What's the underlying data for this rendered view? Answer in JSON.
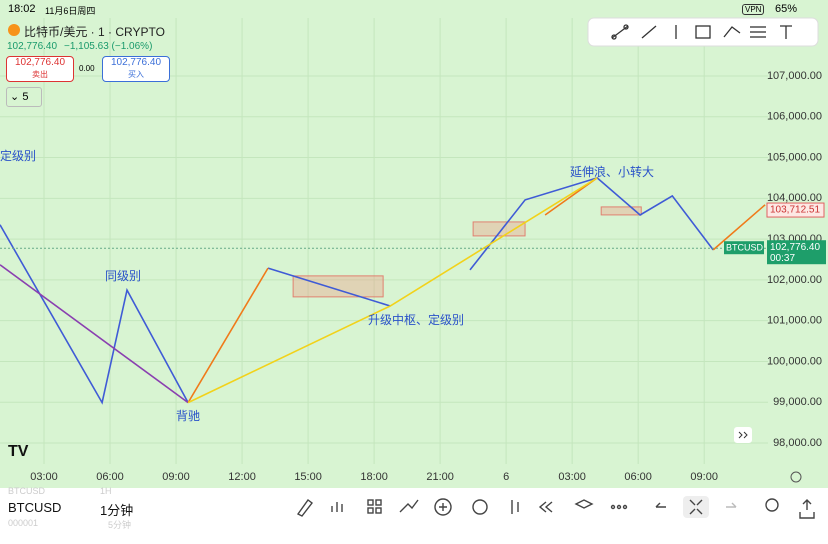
{
  "status_bar": {
    "time": "18:02",
    "date": "11月6日周四",
    "vpn": "VPN",
    "battery": "65%"
  },
  "header": {
    "symbol": "比特币/美元 · 1 · CRYPTO",
    "price": "102,776.40",
    "change": "−1,105.63 (−1.06%)",
    "sell_price": "102,776.40",
    "sell_label": "卖出",
    "spread": "0.00",
    "buy_price": "102,776.40",
    "buy_label": "买入",
    "indicator_count": "5"
  },
  "chart_data": {
    "type": "line",
    "xlim": [
      1,
      35.9
    ],
    "xticks": [
      {
        "value": 3,
        "label": "03:00"
      },
      {
        "value": 6,
        "label": "06:00"
      },
      {
        "value": 9,
        "label": "09:00"
      },
      {
        "value": 12,
        "label": "12:00"
      },
      {
        "value": 15,
        "label": "15:00"
      },
      {
        "value": 18,
        "label": "18:00"
      },
      {
        "value": 21,
        "label": "21:00"
      },
      {
        "value": 24,
        "label": "6"
      },
      {
        "value": 27,
        "label": "03:00"
      },
      {
        "value": 30,
        "label": "06:00"
      },
      {
        "value": 33,
        "label": "09:00"
      }
    ],
    "ylim": [
      97485,
      108250
    ],
    "yticks": [
      {
        "value": 98000,
        "label": "98,000.00"
      },
      {
        "value": 99000,
        "label": "99,000.00"
      },
      {
        "value": 100000,
        "label": "100,000.00"
      },
      {
        "value": 101000,
        "label": "101,000.00"
      },
      {
        "value": 102000,
        "label": "102,000.00"
      },
      {
        "value": 103000,
        "label": "103,000.00"
      },
      {
        "value": 104000,
        "label": "104,000.00"
      },
      {
        "value": 105000,
        "label": "105,000.00"
      },
      {
        "value": 106000,
        "label": "106,000.00"
      },
      {
        "value": 107000,
        "label": "107,000.00"
      }
    ],
    "grid": true,
    "series": [
      {
        "color": "#3f5bd6",
        "x": [
          1.0,
          5.64,
          6.77,
          9.55,
          null,
          13.18,
          18.73,
          null,
          22.36,
          24.86,
          28.14,
          30.09,
          31.55,
          33.41
        ],
        "values": [
          103350,
          98990,
          101750,
          98990,
          null,
          102290,
          101360,
          null,
          102245,
          103960,
          104500,
          103590,
          104060,
          102735
        ]
      },
      {
        "color": "#8a3fb0",
        "x": [
          1.0,
          9.55
        ],
        "values": [
          102370,
          98990
        ]
      },
      {
        "color": "#f07a1a",
        "x": [
          9.55,
          13.18,
          null,
          25.77,
          28.14,
          null,
          33.41,
          35.77
        ],
        "values": [
          98990,
          102290,
          null,
          103590,
          104500,
          null,
          102735,
          103840
        ]
      },
      {
        "color": "#f2d21a",
        "x": [
          9.55,
          18.73,
          28.14
        ],
        "values": [
          98990,
          101360,
          104500
        ]
      }
    ],
    "boxes": [
      {
        "x": [
          14.32,
          18.41
        ],
        "values": [
          101583,
          102098
        ]
      },
      {
        "x": [
          22.5,
          24.86
        ],
        "values": [
          103078,
          103421
        ]
      },
      {
        "x": [
          28.32,
          30.14
        ],
        "values": [
          103593,
          103789
        ]
      }
    ],
    "annotations": [
      "定级别",
      "同级别",
      "背驰",
      "升级中枢、定级别",
      "延伸浪、小转大"
    ],
    "price_line": {
      "value": 102776.4,
      "label": "102,776.40",
      "countdown": "00:37",
      "symbol": "BTCUSD"
    },
    "last_marker": {
      "value": 103712.51,
      "label": "103,712.51"
    }
  },
  "footer": {
    "symbol": "BTCUSD",
    "interval": "1分钟",
    "ghost_symbol": "BTCUSD",
    "ghost_interval": "1H",
    "ghost_code": "000001",
    "ghost_interval2": "5分钟"
  }
}
